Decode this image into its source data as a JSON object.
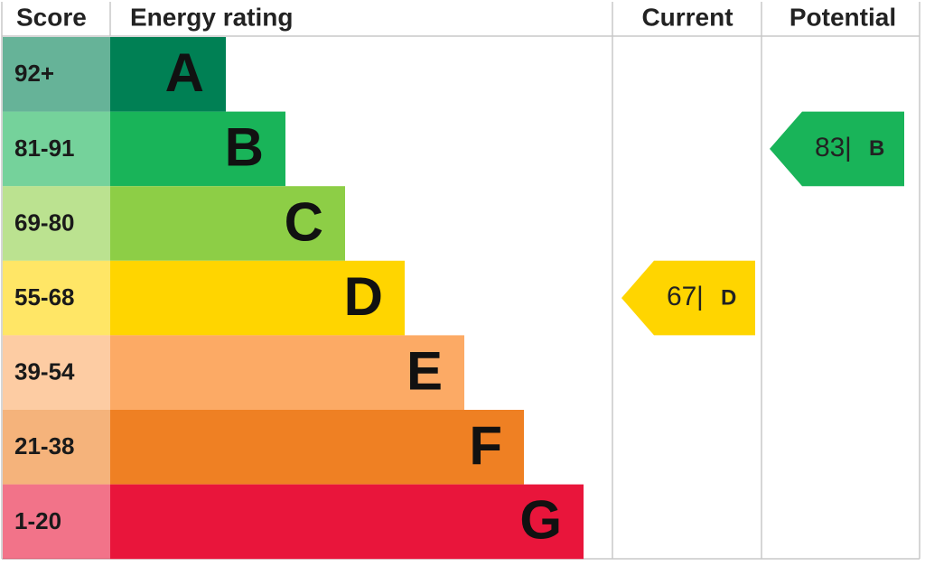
{
  "chart_data": {
    "type": "epc",
    "headers": {
      "score": "Score",
      "rating": "Energy rating",
      "current": "Current",
      "potential": "Potential"
    },
    "bands": [
      {
        "score": "92+",
        "rating": "A",
        "color": "#008054"
      },
      {
        "score": "81-91",
        "rating": "B",
        "color": "#19b459"
      },
      {
        "score": "69-80",
        "rating": "C",
        "color": "#8dce46"
      },
      {
        "score": "55-68",
        "rating": "D",
        "color": "#ffd500"
      },
      {
        "score": "39-54",
        "rating": "E",
        "color": "#fcaa65"
      },
      {
        "score": "21-38",
        "rating": "F",
        "color": "#ef8023"
      },
      {
        "score": "1-20",
        "rating": "G",
        "color": "#e9153b"
      }
    ],
    "separator": "|",
    "current": {
      "value": 67,
      "rating": "D"
    },
    "potential": {
      "value": 83,
      "rating": "B"
    }
  }
}
